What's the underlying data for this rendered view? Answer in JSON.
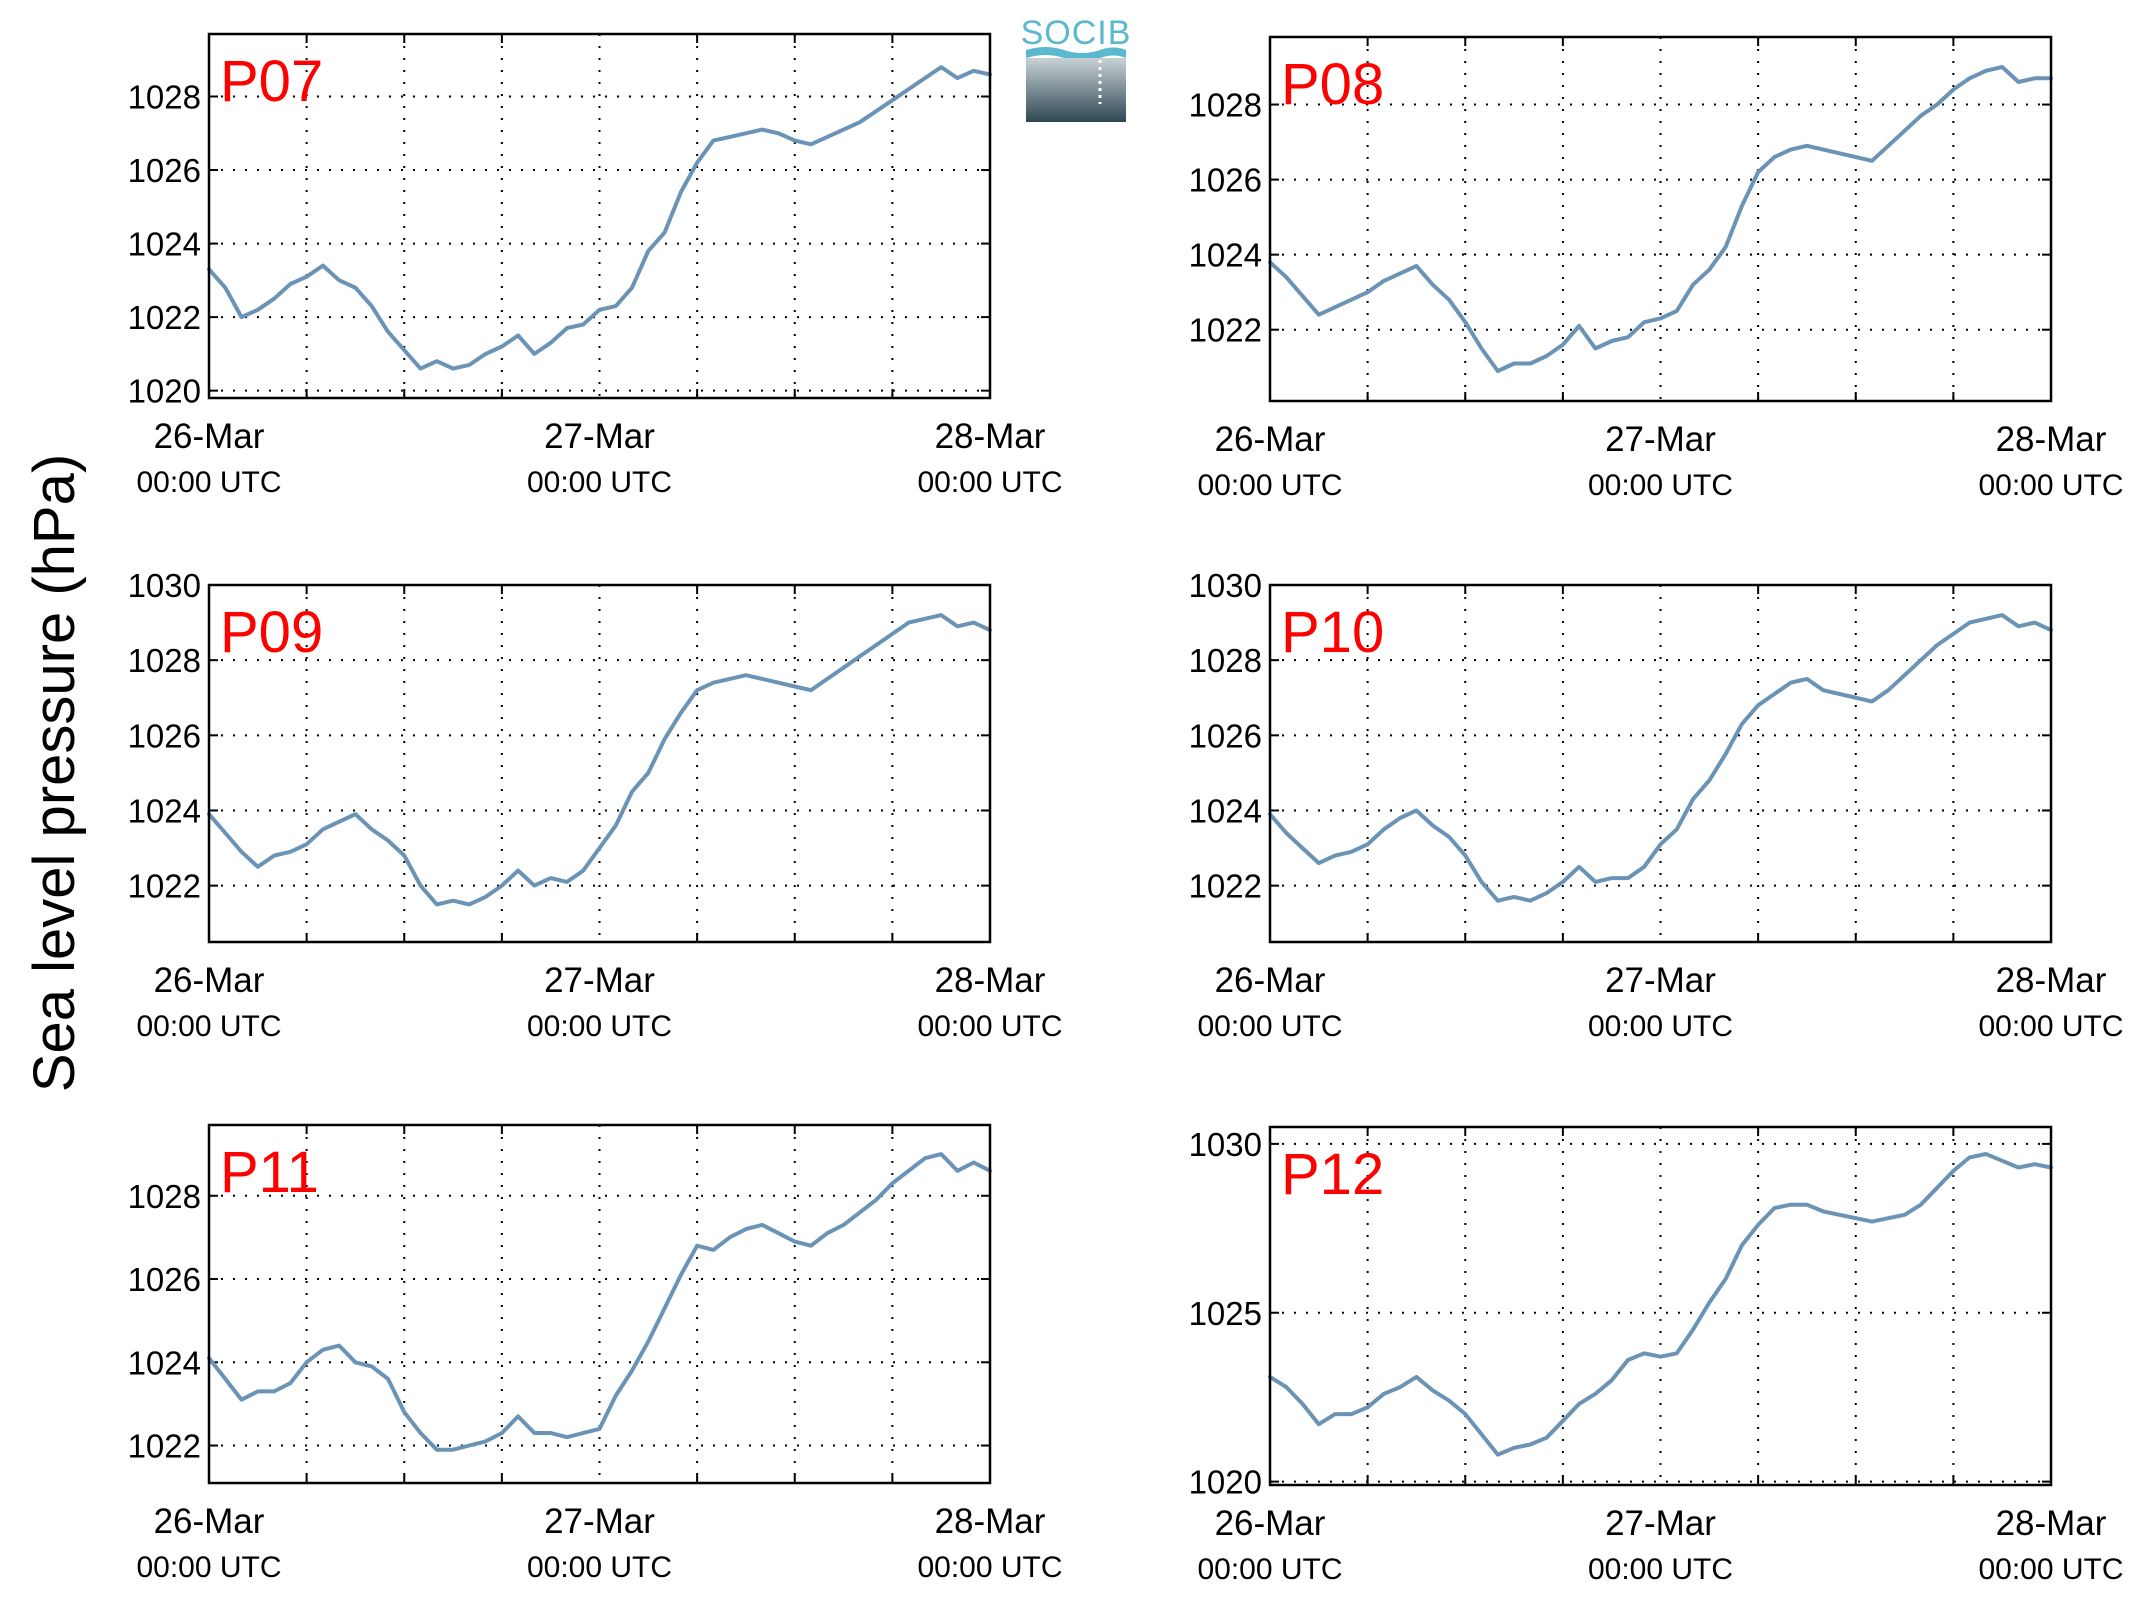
{
  "figure": {
    "ylabel": "Sea level pressure (hPa)",
    "logo": {
      "text": "SOCIB"
    },
    "colors": {
      "line": "#6a93b6",
      "title": "#ff0000",
      "logo_text": "#5ab8cf",
      "logo_top": "#c8d2d6",
      "logo_bottom": "#2f4754"
    }
  },
  "chart_data": [
    {
      "type": "line",
      "title": "P07",
      "grid": true,
      "xlim": [
        0,
        48
      ],
      "x_ticks": [
        {
          "t": 0,
          "date": "26-Mar",
          "time": "00:00 UTC"
        },
        {
          "t": 24,
          "date": "27-Mar",
          "time": "00:00 UTC"
        },
        {
          "t": 48,
          "date": "28-Mar",
          "time": "00:00 UTC"
        }
      ],
      "x_minor_grid": [
        6,
        12,
        18,
        30,
        36,
        42
      ],
      "ylim": [
        1019.8,
        1029.7
      ],
      "yticks": [
        1020,
        1022,
        1024,
        1026,
        1028
      ],
      "x": [
        0,
        1,
        2,
        3,
        4,
        5,
        6,
        7,
        8,
        9,
        10,
        11,
        12,
        13,
        14,
        15,
        16,
        17,
        18,
        19,
        20,
        21,
        22,
        23,
        24,
        25,
        26,
        27,
        28,
        29,
        30,
        31,
        32,
        33,
        34,
        35,
        36,
        37,
        38,
        39,
        40,
        41,
        42,
        43,
        44,
        45,
        46,
        47,
        48
      ],
      "y": [
        1023.3,
        1022.8,
        1022.0,
        1022.2,
        1022.5,
        1022.9,
        1023.1,
        1023.4,
        1023.0,
        1022.8,
        1022.3,
        1021.6,
        1021.1,
        1020.6,
        1020.8,
        1020.6,
        1020.7,
        1021.0,
        1021.2,
        1021.5,
        1021.0,
        1021.3,
        1021.7,
        1021.8,
        1022.2,
        1022.3,
        1022.8,
        1023.8,
        1024.3,
        1025.4,
        1026.2,
        1026.8,
        1026.9,
        1027.0,
        1027.1,
        1027.0,
        1026.8,
        1026.7,
        1026.9,
        1027.1,
        1027.3,
        1027.6,
        1027.9,
        1028.2,
        1028.5,
        1028.8,
        1028.5,
        1028.7,
        1028.6
      ]
    },
    {
      "type": "line",
      "title": "P08",
      "grid": true,
      "xlim": [
        0,
        48
      ],
      "x_ticks": [
        {
          "t": 0,
          "date": "26-Mar",
          "time": "00:00 UTC"
        },
        {
          "t": 24,
          "date": "27-Mar",
          "time": "00:00 UTC"
        },
        {
          "t": 48,
          "date": "28-Mar",
          "time": "00:00 UTC"
        }
      ],
      "x_minor_grid": [
        6,
        12,
        18,
        30,
        36,
        42
      ],
      "ylim": [
        1020.1,
        1029.8
      ],
      "yticks": [
        1022,
        1024,
        1026,
        1028
      ],
      "x": [
        0,
        1,
        2,
        3,
        4,
        5,
        6,
        7,
        8,
        9,
        10,
        11,
        12,
        13,
        14,
        15,
        16,
        17,
        18,
        19,
        20,
        21,
        22,
        23,
        24,
        25,
        26,
        27,
        28,
        29,
        30,
        31,
        32,
        33,
        34,
        35,
        36,
        37,
        38,
        39,
        40,
        41,
        42,
        43,
        44,
        45,
        46,
        47,
        48
      ],
      "y": [
        1023.8,
        1023.4,
        1022.9,
        1022.4,
        1022.6,
        1022.8,
        1023.0,
        1023.3,
        1023.5,
        1023.7,
        1023.2,
        1022.8,
        1022.2,
        1021.5,
        1020.9,
        1021.1,
        1021.1,
        1021.3,
        1021.6,
        1022.1,
        1021.5,
        1021.7,
        1021.8,
        1022.2,
        1022.3,
        1022.5,
        1023.2,
        1023.6,
        1024.2,
        1025.3,
        1026.2,
        1026.6,
        1026.8,
        1026.9,
        1026.8,
        1026.7,
        1026.6,
        1026.5,
        1026.9,
        1027.3,
        1027.7,
        1028.0,
        1028.4,
        1028.7,
        1028.9,
        1029.0,
        1028.6,
        1028.7,
        1028.7
      ]
    },
    {
      "type": "line",
      "title": "P09",
      "grid": true,
      "xlim": [
        0,
        48
      ],
      "x_ticks": [
        {
          "t": 0,
          "date": "26-Mar",
          "time": "00:00 UTC"
        },
        {
          "t": 24,
          "date": "27-Mar",
          "time": "00:00 UTC"
        },
        {
          "t": 48,
          "date": "28-Mar",
          "time": "00:00 UTC"
        }
      ],
      "x_minor_grid": [
        6,
        12,
        18,
        30,
        36,
        42
      ],
      "ylim": [
        1020.5,
        1030.0
      ],
      "yticks": [
        1022,
        1024,
        1026,
        1028,
        1030
      ],
      "x": [
        0,
        1,
        2,
        3,
        4,
        5,
        6,
        7,
        8,
        9,
        10,
        11,
        12,
        13,
        14,
        15,
        16,
        17,
        18,
        19,
        20,
        21,
        22,
        23,
        24,
        25,
        26,
        27,
        28,
        29,
        30,
        31,
        32,
        33,
        34,
        35,
        36,
        37,
        38,
        39,
        40,
        41,
        42,
        43,
        44,
        45,
        46,
        47,
        48
      ],
      "y": [
        1023.9,
        1023.4,
        1022.9,
        1022.5,
        1022.8,
        1022.9,
        1023.1,
        1023.5,
        1023.7,
        1023.9,
        1023.5,
        1023.2,
        1022.8,
        1022.0,
        1021.5,
        1021.6,
        1021.5,
        1021.7,
        1022.0,
        1022.4,
        1022.0,
        1022.2,
        1022.1,
        1022.4,
        1023.0,
        1023.6,
        1024.5,
        1025.0,
        1025.9,
        1026.6,
        1027.2,
        1027.4,
        1027.5,
        1027.6,
        1027.5,
        1027.4,
        1027.3,
        1027.2,
        1027.5,
        1027.8,
        1028.1,
        1028.4,
        1028.7,
        1029.0,
        1029.1,
        1029.2,
        1028.9,
        1029.0,
        1028.8
      ]
    },
    {
      "type": "line",
      "title": "P10",
      "grid": true,
      "xlim": [
        0,
        48
      ],
      "x_ticks": [
        {
          "t": 0,
          "date": "26-Mar",
          "time": "00:00 UTC"
        },
        {
          "t": 24,
          "date": "27-Mar",
          "time": "00:00 UTC"
        },
        {
          "t": 48,
          "date": "28-Mar",
          "time": "00:00 UTC"
        }
      ],
      "x_minor_grid": [
        6,
        12,
        18,
        30,
        36,
        42
      ],
      "ylim": [
        1020.5,
        1030.0
      ],
      "yticks": [
        1022,
        1024,
        1026,
        1028,
        1030
      ],
      "x": [
        0,
        1,
        2,
        3,
        4,
        5,
        6,
        7,
        8,
        9,
        10,
        11,
        12,
        13,
        14,
        15,
        16,
        17,
        18,
        19,
        20,
        21,
        22,
        23,
        24,
        25,
        26,
        27,
        28,
        29,
        30,
        31,
        32,
        33,
        34,
        35,
        36,
        37,
        38,
        39,
        40,
        41,
        42,
        43,
        44,
        45,
        46,
        47,
        48
      ],
      "y": [
        1023.9,
        1023.4,
        1023.0,
        1022.6,
        1022.8,
        1022.9,
        1023.1,
        1023.5,
        1023.8,
        1024.0,
        1023.6,
        1023.3,
        1022.8,
        1022.1,
        1021.6,
        1021.7,
        1021.6,
        1021.8,
        1022.1,
        1022.5,
        1022.1,
        1022.2,
        1022.2,
        1022.5,
        1023.1,
        1023.5,
        1024.3,
        1024.8,
        1025.5,
        1026.3,
        1026.8,
        1027.1,
        1027.4,
        1027.5,
        1027.2,
        1027.1,
        1027.0,
        1026.9,
        1027.2,
        1027.6,
        1028.0,
        1028.4,
        1028.7,
        1029.0,
        1029.1,
        1029.2,
        1028.9,
        1029.0,
        1028.8
      ]
    },
    {
      "type": "line",
      "title": "P11",
      "grid": true,
      "xlim": [
        0,
        48
      ],
      "x_ticks": [
        {
          "t": 0,
          "date": "26-Mar",
          "time": "00:00 UTC"
        },
        {
          "t": 24,
          "date": "27-Mar",
          "time": "00:00 UTC"
        },
        {
          "t": 48,
          "date": "28-Mar",
          "time": "00:00 UTC"
        }
      ],
      "x_minor_grid": [
        6,
        12,
        18,
        30,
        36,
        42
      ],
      "ylim": [
        1021.1,
        1029.7
      ],
      "yticks": [
        1022,
        1024,
        1026,
        1028
      ],
      "x": [
        0,
        1,
        2,
        3,
        4,
        5,
        6,
        7,
        8,
        9,
        10,
        11,
        12,
        13,
        14,
        15,
        16,
        17,
        18,
        19,
        20,
        21,
        22,
        23,
        24,
        25,
        26,
        27,
        28,
        29,
        30,
        31,
        32,
        33,
        34,
        35,
        36,
        37,
        38,
        39,
        40,
        41,
        42,
        43,
        44,
        45,
        46,
        47,
        48
      ],
      "y": [
        1024.1,
        1023.6,
        1023.1,
        1023.3,
        1023.3,
        1023.5,
        1024.0,
        1024.3,
        1024.4,
        1024.0,
        1023.9,
        1023.6,
        1022.8,
        1022.3,
        1021.9,
        1021.9,
        1022.0,
        1022.1,
        1022.3,
        1022.7,
        1022.3,
        1022.3,
        1022.2,
        1022.3,
        1022.4,
        1023.2,
        1023.8,
        1024.5,
        1025.3,
        1026.1,
        1026.8,
        1026.7,
        1027.0,
        1027.2,
        1027.3,
        1027.1,
        1026.9,
        1026.8,
        1027.1,
        1027.3,
        1027.6,
        1027.9,
        1028.3,
        1028.6,
        1028.9,
        1029.0,
        1028.6,
        1028.8,
        1028.6
      ]
    },
    {
      "type": "line",
      "title": "P12",
      "grid": true,
      "xlim": [
        0,
        48
      ],
      "x_ticks": [
        {
          "t": 0,
          "date": "26-Mar",
          "time": "00:00 UTC"
        },
        {
          "t": 24,
          "date": "27-Mar",
          "time": "00:00 UTC"
        },
        {
          "t": 48,
          "date": "28-Mar",
          "time": "00:00 UTC"
        }
      ],
      "x_minor_grid": [
        6,
        12,
        18,
        30,
        36,
        42
      ],
      "ylim": [
        1019.9,
        1030.5
      ],
      "yticks": [
        1020,
        1025,
        1030
      ],
      "x": [
        0,
        1,
        2,
        3,
        4,
        5,
        6,
        7,
        8,
        9,
        10,
        11,
        12,
        13,
        14,
        15,
        16,
        17,
        18,
        19,
        20,
        21,
        22,
        23,
        24,
        25,
        26,
        27,
        28,
        29,
        30,
        31,
        32,
        33,
        34,
        35,
        36,
        37,
        38,
        39,
        40,
        41,
        42,
        43,
        44,
        45,
        46,
        47,
        48
      ],
      "y": [
        1023.1,
        1022.8,
        1022.3,
        1021.7,
        1022.0,
        1022.0,
        1022.2,
        1022.6,
        1022.8,
        1023.1,
        1022.7,
        1022.4,
        1022.0,
        1021.4,
        1020.8,
        1021.0,
        1021.1,
        1021.3,
        1021.8,
        1022.3,
        1022.6,
        1023.0,
        1023.6,
        1023.8,
        1023.7,
        1023.8,
        1024.5,
        1025.3,
        1026.0,
        1027.0,
        1027.6,
        1028.1,
        1028.2,
        1028.2,
        1028.0,
        1027.9,
        1027.8,
        1027.7,
        1027.8,
        1027.9,
        1028.2,
        1028.7,
        1029.2,
        1029.6,
        1029.7,
        1029.5,
        1029.3,
        1029.4,
        1029.3
      ]
    }
  ]
}
